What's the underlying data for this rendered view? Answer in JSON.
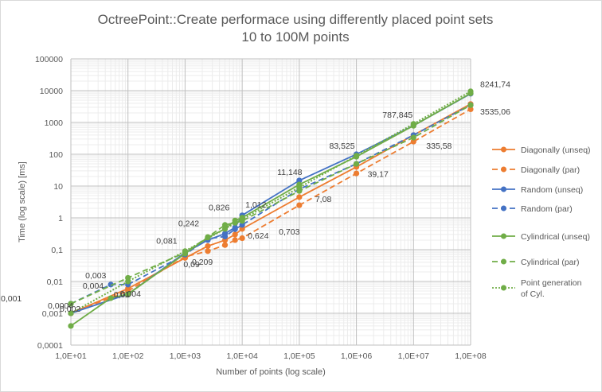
{
  "chart_data": {
    "type": "line",
    "title_lines": [
      "OctreePoint::Create performace using differently placed point sets",
      "10 to 100M points"
    ],
    "xlabel": "Number of points (log scale)",
    "ylabel": "Time (log scale) [ms]",
    "x_scale": "log",
    "y_scale": "log",
    "xlim": [
      10,
      100000000
    ],
    "ylim": [
      0.0001,
      100000
    ],
    "grid": true,
    "legend_position": "right",
    "x_ticks": [
      "1,0E+01",
      "1,0E+02",
      "1,0E+03",
      "1,0E+04",
      "1,0E+05",
      "1,0E+06",
      "1,0E+07",
      "1,0E+08"
    ],
    "y_ticks": [
      "0,0001",
      "0,001",
      "0,01",
      "0,1",
      "1",
      "10",
      "100",
      "1000",
      "10000",
      "100000"
    ],
    "series": [
      {
        "name": "Diagonally (unseq)",
        "color": "#ed7d31",
        "dash": "solid",
        "x": [
          10,
          100,
          1000,
          2500,
          5000,
          7500,
          10000,
          100000,
          1000000,
          10000000,
          100000000
        ],
        "y": [
          0.001,
          0.006,
          0.055,
          0.13,
          0.2,
          0.3,
          0.45,
          4.5,
          40,
          400,
          3800
        ]
      },
      {
        "name": "Diagonally (par)",
        "color": "#ed7d31",
        "dash": "dash",
        "x": [
          10,
          100,
          1000,
          2500,
          5000,
          7500,
          10000,
          100000,
          1000000,
          10000000,
          100000000
        ],
        "y": [
          0.001,
          0.005,
          0.06,
          0.09,
          0.14,
          0.2,
          0.23,
          2.5,
          25,
          250,
          2600
        ]
      },
      {
        "name": "Random (unseq)",
        "color": "#4472c4",
        "dash": "solid",
        "x": [
          10,
          100,
          1000,
          2500,
          5000,
          7500,
          10000,
          100000,
          1000000,
          10000000,
          100000000
        ],
        "y": [
          0.001,
          0.004,
          0.08,
          0.2,
          0.32,
          0.5,
          1.2,
          15,
          100,
          800,
          8000
        ]
      },
      {
        "name": "Random (par)",
        "color": "#4472c4",
        "dash": "dash",
        "x": [
          10,
          50,
          100,
          1000,
          2500,
          5000,
          7500,
          10000,
          100000,
          1000000,
          10000000,
          100000000
        ],
        "y": [
          0.002,
          0.008,
          0.008,
          0.07,
          0.22,
          0.26,
          0.44,
          0.6,
          8,
          50,
          400,
          3535.06
        ]
      },
      {
        "name": "Cylindrical (unseq)",
        "color": "#70ad47",
        "dash": "solid",
        "x": [
          10,
          50,
          100,
          1000,
          2500,
          5000,
          7500,
          10000,
          100000,
          1000000,
          10000000,
          100000000
        ],
        "y": [
          0.0004,
          0.003,
          0.004,
          0.075,
          0.242,
          0.45,
          0.826,
          1.012,
          11.148,
          83.525,
          787.845,
          8241.74
        ]
      },
      {
        "name": "Cylindrical (par)",
        "color": "#70ad47",
        "dash": "dash",
        "x": [
          10,
          100,
          1000,
          2500,
          5000,
          7500,
          10000,
          100000,
          1000000,
          10000000,
          100000000
        ],
        "y": [
          0.002,
          0.013,
          0.081,
          0.25,
          0.6,
          0.7,
          0.8,
          7,
          50,
          335.58,
          3500
        ]
      },
      {
        "name": "Point generation of Cyl.",
        "color": "#70ad47",
        "dash": "dot",
        "x": [
          10,
          100,
          1000,
          10000,
          100000,
          1000000,
          10000000,
          100000000
        ],
        "y": [
          0.001,
          0.01,
          0.09,
          0.9,
          9,
          90,
          900,
          9500
        ]
      }
    ],
    "annotations": [
      {
        "text": "8241,74",
        "x": 100000000,
        "y": 8241.74
      },
      {
        "text": "3535,06",
        "x": 100000000,
        "y": 3535.06
      },
      {
        "text": "787,845",
        "x": 10000000,
        "y": 787.845
      },
      {
        "text": "335,58",
        "x": 10000000,
        "y": 335.58
      },
      {
        "text": "83,525",
        "x": 1000000,
        "y": 83.525
      },
      {
        "text": "39,17",
        "x": 1000000,
        "y": 39.17
      },
      {
        "text": "11,148",
        "x": 100000,
        "y": 11.148
      },
      {
        "text": "7,08",
        "x": 100000,
        "y": 7.08
      },
      {
        "text": "1,012",
        "x": 10000,
        "y": 1.012
      },
      {
        "text": "0,826",
        "x": 7500,
        "y": 0.826
      },
      {
        "text": "0,703",
        "x": 10000,
        "y": 0.703
      },
      {
        "text": "0,624",
        "x": 7500,
        "y": 0.624
      },
      {
        "text": "0,242",
        "x": 2500,
        "y": 0.242
      },
      {
        "text": "0,209",
        "x": 2500,
        "y": 0.209
      },
      {
        "text": "0,081",
        "x": 1000,
        "y": 0.081
      },
      {
        "text": "0,09",
        "x": 1000,
        "y": 0.09
      },
      {
        "text": "0,004",
        "x": 50,
        "y": 0.004
      },
      {
        "text": "0,003",
        "x": 50,
        "y": 0.003
      },
      {
        "text": "0,004",
        "x": 100,
        "y": 0.004
      },
      {
        "text": "0,01",
        "x": 100,
        "y": 0.01
      },
      {
        "text": "0,0004",
        "x": 10,
        "y": 0.0004
      },
      {
        "text": "0,001",
        "x": 10,
        "y": 0.001
      },
      {
        "text": "0,002",
        "x": 10,
        "y": 0.002
      }
    ]
  }
}
